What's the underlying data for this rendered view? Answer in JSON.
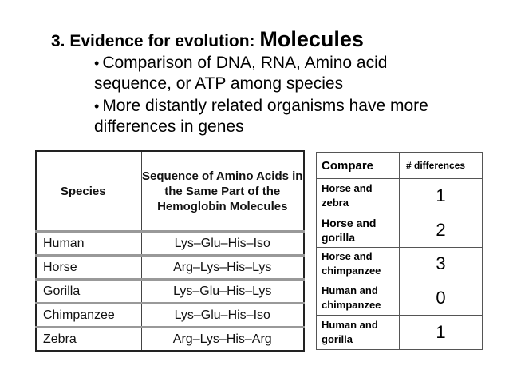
{
  "title": {
    "prefix": "3. Evidence for evolution:",
    "emphasis": "Molecules"
  },
  "bullets": [
    "Comparison of  DNA, RNA, Amino acid sequence, or ATP among species",
    "More distantly related organisms have more differences in genes"
  ],
  "bullet_glyph": "•",
  "hemoglobin_table": {
    "headers": [
      "Species",
      "Sequence of Amino Acids in the Same Part of the Hemoglobin Molecules"
    ],
    "rows": [
      [
        "Human",
        "Lys–Glu–His–Iso"
      ],
      [
        "Horse",
        "Arg–Lys–His–Lys"
      ],
      [
        "Gorilla",
        "Lys–Glu–His–Lys"
      ],
      [
        "Chimpanzee",
        "Lys–Glu–His–Iso"
      ],
      [
        "Zebra",
        "Arg–Lys–His–Arg"
      ]
    ]
  },
  "comparison_table": {
    "headers": [
      "Compare",
      "# differences"
    ],
    "rows": [
      [
        "Horse and zebra",
        "1"
      ],
      [
        "Horse and gorilla",
        "2"
      ],
      [
        "Horse and chimpanzee",
        "3"
      ],
      [
        "Human and chimpanzee",
        "0"
      ],
      [
        "Human and gorilla",
        "1"
      ]
    ]
  }
}
